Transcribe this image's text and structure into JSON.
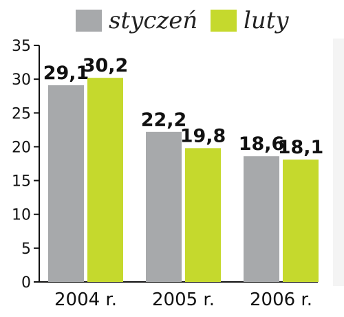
{
  "chart_data": {
    "type": "bar",
    "categories": [
      "2004 r.",
      "2005 r.",
      "2006 r."
    ],
    "series": [
      {
        "name": "styczeń",
        "values": [
          29.1,
          22.2,
          18.6
        ],
        "labels": [
          "29,1",
          "22,2",
          "18,6"
        ],
        "color": "#a7a9ab"
      },
      {
        "name": "luty",
        "values": [
          30.2,
          19.8,
          18.1
        ],
        "labels": [
          "30,2",
          "19,8",
          "18,1"
        ],
        "color": "#c5d92d"
      }
    ],
    "yticks": [
      "0",
      "5",
      "10",
      "15",
      "20",
      "25",
      "30",
      "35"
    ],
    "ylim": [
      0,
      35
    ],
    "legend_position": "top",
    "grid": false
  }
}
